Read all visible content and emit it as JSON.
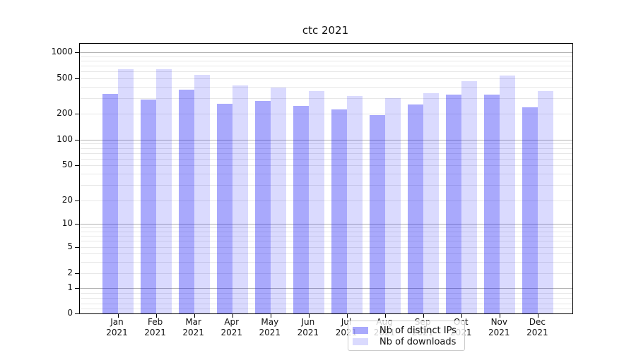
{
  "window": {
    "title": "ctc 2021"
  },
  "chart_data": {
    "type": "bar",
    "title": "ctc 2021",
    "yscale": "symlog",
    "grid": "both",
    "legend_position": "lower center",
    "year_label": "2021",
    "categories": [
      "Jan",
      "Feb",
      "Mar",
      "Apr",
      "May",
      "Jun",
      "Jul",
      "Aug",
      "Sep",
      "Oct",
      "Nov",
      "Dec"
    ],
    "yticks": [
      0,
      1,
      2,
      5,
      10,
      20,
      50,
      100,
      200,
      500,
      1000
    ],
    "series": [
      {
        "name": "Nb of distinct IPs",
        "color": "rgba(10,10,245,0.35)",
        "values": [
          337,
          290,
          370,
          260,
          276,
          244,
          222,
          193,
          253,
          328,
          330,
          235
        ]
      },
      {
        "name": "Nb of downloads",
        "color": "rgba(10,10,245,0.15)",
        "values": [
          640,
          640,
          550,
          415,
          394,
          361,
          317,
          300,
          341,
          466,
          540,
          361
        ]
      }
    ]
  },
  "colors": {
    "major_grid": "#b2b2b2",
    "minor_grid": "#e7e7e7",
    "spine": "#000000",
    "text": "#111111",
    "legend_border": "#cccccc",
    "legend_bg": "rgba(255,255,255,0.8)"
  }
}
